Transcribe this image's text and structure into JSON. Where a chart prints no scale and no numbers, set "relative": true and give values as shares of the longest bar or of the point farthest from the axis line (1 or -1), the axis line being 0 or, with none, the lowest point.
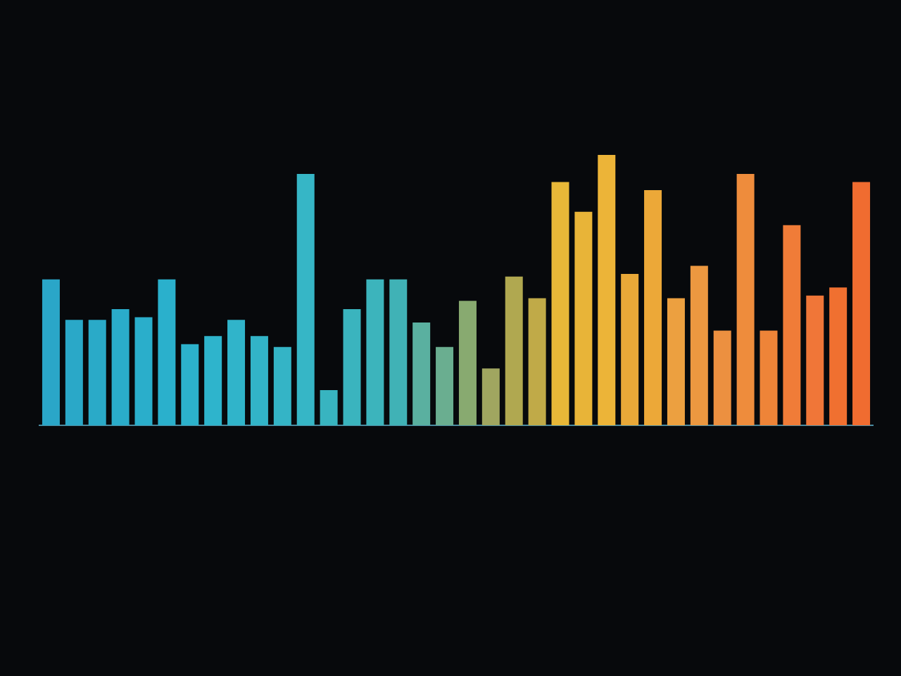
{
  "chart_data": {
    "type": "bar",
    "relative": true,
    "categories": [
      null,
      null,
      null,
      null,
      null,
      null,
      null,
      null,
      null,
      null,
      null,
      null,
      null,
      null,
      null,
      null,
      null,
      null,
      null,
      null,
      null,
      null,
      null,
      null,
      null,
      null,
      null,
      null,
      null,
      null,
      null,
      null,
      null,
      null,
      null,
      null
    ],
    "values": [
      0.54,
      0.39,
      0.39,
      0.43,
      0.4,
      0.54,
      0.3,
      0.33,
      0.39,
      0.33,
      0.29,
      0.93,
      0.13,
      0.43,
      0.54,
      0.54,
      0.38,
      0.29,
      0.46,
      0.21,
      0.55,
      0.47,
      0.9,
      0.79,
      1,
      0.56,
      0.87,
      0.47,
      0.59,
      0.35,
      0.93,
      0.35,
      0.74,
      0.48,
      0.51,
      0.9
    ],
    "colors": [
      "#2aa6c8",
      "#2aa8c8",
      "#2aaac8",
      "#2aacca",
      "#2aaecb",
      "#2ab0cc",
      "#2cb2cc",
      "#2eb4cc",
      "#30b4ca",
      "#32b4c8",
      "#34b4c6",
      "#36b6c6",
      "#38b4c0",
      "#3ab4be",
      "#3cb4bc",
      "#40b2b6",
      "#5ab0a0",
      "#6aae90",
      "#88aa70",
      "#a0a660",
      "#b0a850",
      "#c0aa48",
      "#e8b838",
      "#e8b438",
      "#ecb438",
      "#e8a838",
      "#eca838",
      "#eca040",
      "#ec9840",
      "#ec9040",
      "#ee8c3c",
      "#ee8438",
      "#f07c38",
      "#f07638",
      "#f07030",
      "#f06c30"
    ]
  }
}
